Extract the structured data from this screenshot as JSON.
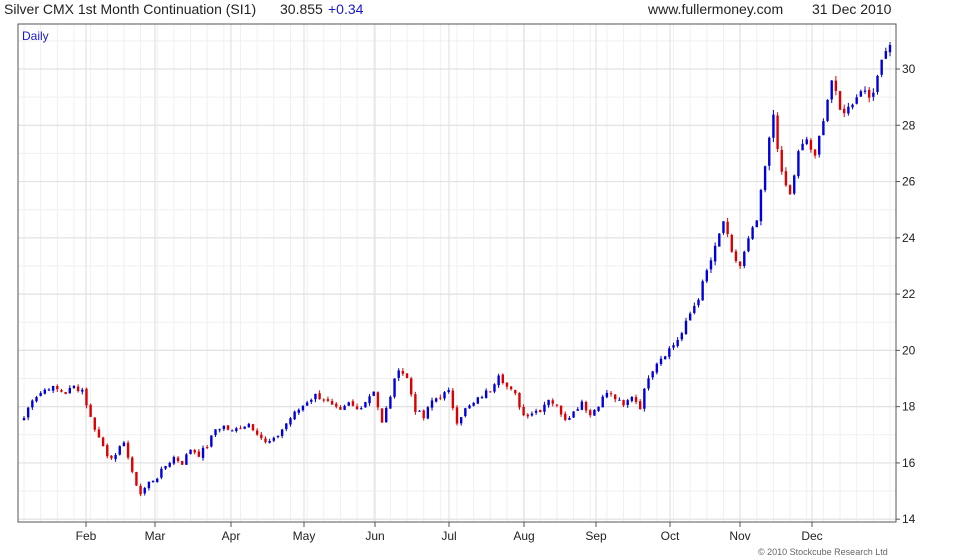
{
  "header": {
    "instrument": "Silver CMX 1st Month Continuation (SI1)",
    "last": "30.855",
    "change": "+0.34",
    "source": "www.fullermoney.com",
    "date": "31 Dec 2010"
  },
  "footer": {
    "copyright": "© 2010 Stockcube Research Ltd"
  },
  "colors": {
    "up": "#0000dd",
    "down": "#dd0000",
    "grid": "#e2e2e2",
    "frame": "#555555"
  },
  "chart_data": {
    "type": "candlestick",
    "period_label": "Daily",
    "x_tick_labels": [
      "Feb",
      "Mar",
      "Apr",
      "May",
      "Jun",
      "Jul",
      "Aug",
      "Sep",
      "Oct",
      "Nov",
      "Dec"
    ],
    "y_tick_labels": [
      "14",
      "16",
      "18",
      "20",
      "22",
      "24",
      "26",
      "28",
      "30"
    ],
    "ylim": [
      13.9,
      31.6
    ],
    "y_axis_side": "right",
    "grid": true,
    "approx_daily_closes": [
      17.6,
      18.3,
      18.5,
      18.7,
      18.6,
      18.5,
      18.7,
      18.6,
      17.6,
      16.9,
      16.3,
      16.2,
      16.8,
      15.6,
      14.9,
      15.3,
      15.5,
      15.9,
      16.2,
      16.0,
      16.5,
      16.3,
      16.6,
      17.2,
      17.3,
      17.1,
      17.3,
      17.4,
      17.1,
      16.7,
      16.8,
      17.2,
      17.6,
      17.9,
      18.2,
      18.4,
      18.3,
      18.0,
      17.8,
      18.1,
      17.9,
      18.2,
      18.6,
      17.4,
      18.4,
      19.4,
      19.0,
      17.9,
      17.6,
      18.2,
      18.4,
      18.5,
      17.5,
      17.9,
      18.1,
      18.4,
      18.6,
      19.2,
      18.7,
      18.4,
      17.7,
      17.8,
      17.9,
      18.3,
      18.0,
      17.6,
      17.8,
      18.2,
      17.7,
      18.1,
      18.5,
      18.3,
      18.0,
      18.4,
      18.0,
      19.1,
      19.6,
      19.9,
      20.2,
      20.6,
      21.3,
      21.9,
      22.8,
      23.6,
      24.6,
      23.4,
      23.0,
      23.9,
      24.6,
      26.5,
      28.4,
      26.2,
      25.5,
      27.0,
      27.5,
      26.8,
      28.3,
      29.6,
      28.5,
      28.6,
      29.1,
      29.3,
      29.0,
      30.5,
      30.855
    ]
  }
}
